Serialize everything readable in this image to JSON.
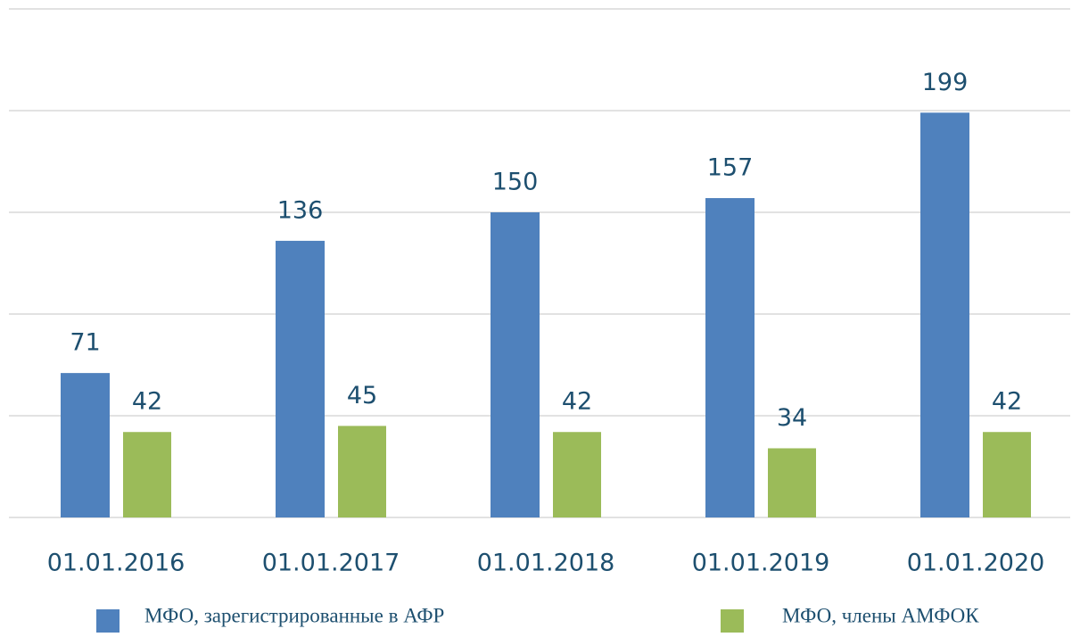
{
  "chart_data": {
    "type": "bar",
    "categories": [
      "01.01.2016",
      "01.01.2017",
      "01.01.2018",
      "01.01.2019",
      "01.01.2020"
    ],
    "series": [
      {
        "name": "МФО, зарегистрированные в АФР",
        "color": "#4f81bd",
        "values": [
          71,
          136,
          150,
          157,
          199
        ]
      },
      {
        "name": "МФО, члены АМФОК",
        "color": "#9bbb59",
        "values": [
          42,
          45,
          42,
          34,
          42
        ]
      }
    ],
    "ylim": [
      0,
      250
    ],
    "yticks": [
      0,
      50,
      100,
      150,
      200,
      250
    ],
    "grid": true
  }
}
